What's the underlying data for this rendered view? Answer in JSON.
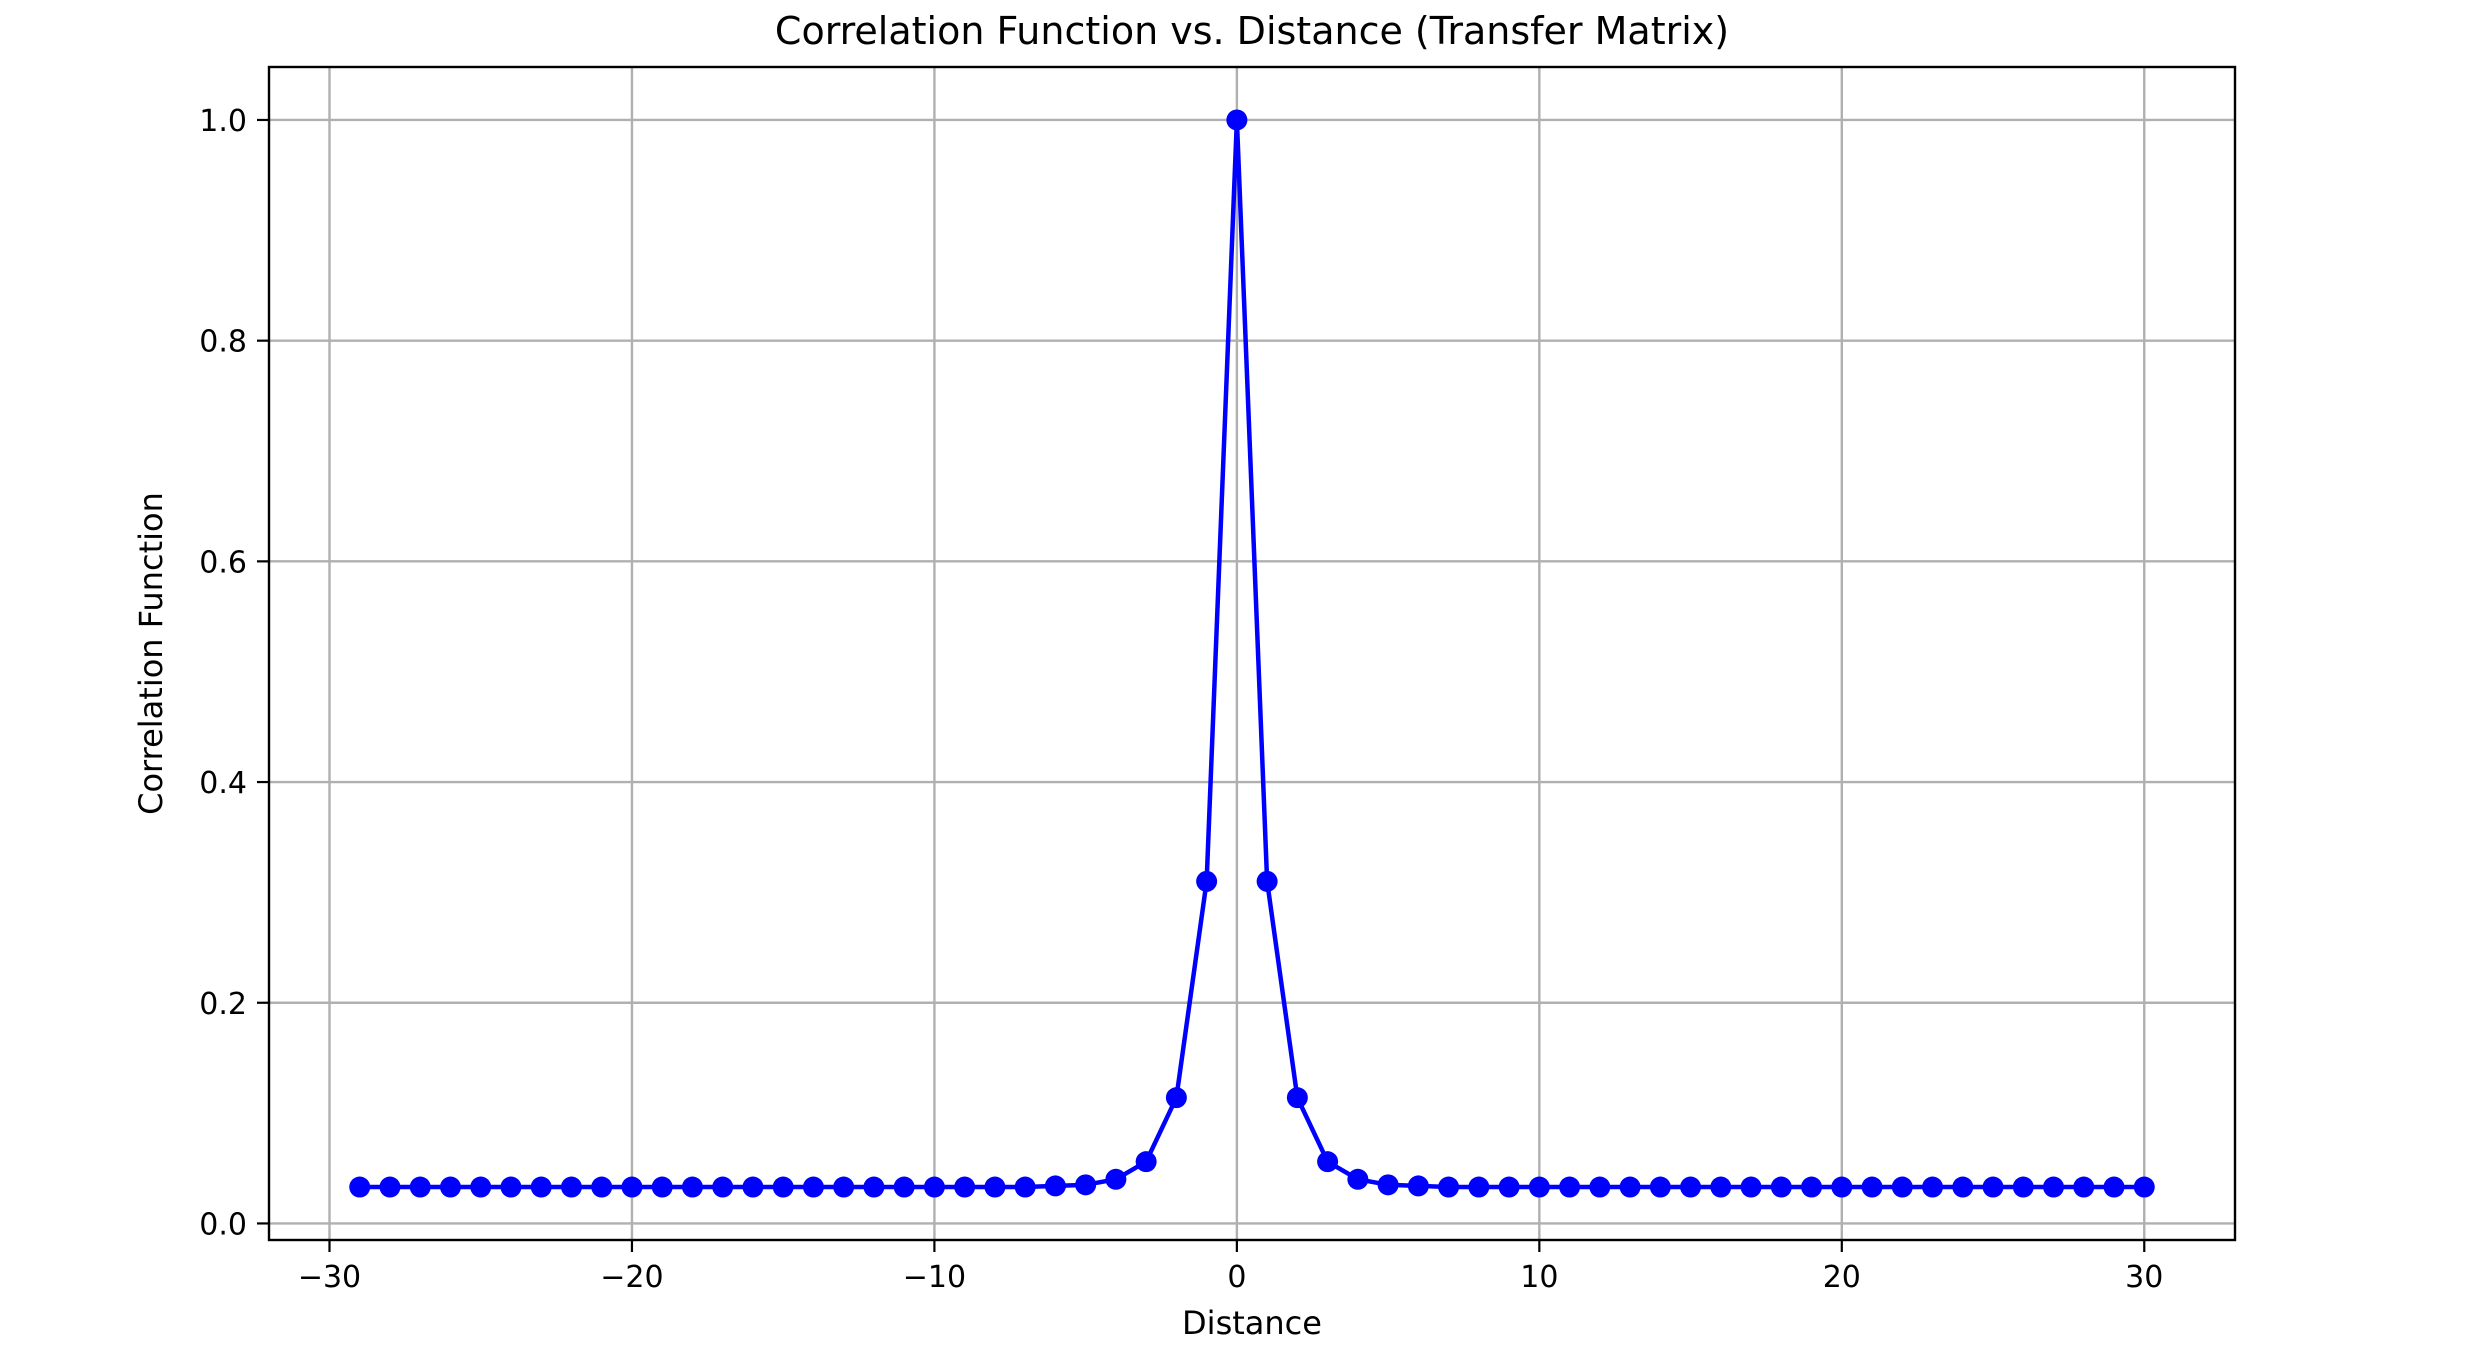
{
  "chart_data": {
    "type": "line",
    "title": "Correlation Function vs. Distance (Transfer Matrix)",
    "xlabel": "Distance",
    "ylabel": "Correlation Function",
    "xlim": [
      -32,
      33
    ],
    "ylim": [
      -0.015,
      1.048
    ],
    "xticks": [
      -30,
      -20,
      -10,
      0,
      10,
      20,
      30
    ],
    "xtick_labels": [
      "−30",
      "−20",
      "−10",
      "0",
      "10",
      "20",
      "30"
    ],
    "yticks": [
      0.0,
      0.2,
      0.4,
      0.6,
      0.8,
      1.0
    ],
    "ytick_labels": [
      "0.0",
      "0.2",
      "0.4",
      "0.6",
      "0.8",
      "1.0"
    ],
    "grid": true,
    "colors": {
      "series": "#0000ff",
      "grid": "#b0b0b0",
      "axes": "#000000"
    },
    "series": [
      {
        "marker": "circle",
        "x": [
          -29,
          -28,
          -27,
          -26,
          -25,
          -24,
          -23,
          -22,
          -21,
          -20,
          -19,
          -18,
          -17,
          -16,
          -15,
          -14,
          -13,
          -12,
          -11,
          -10,
          -9,
          -8,
          -7,
          -6,
          -5,
          -4,
          -3,
          -2,
          -1,
          0,
          1,
          2,
          3,
          4,
          5,
          6,
          7,
          8,
          9,
          10,
          11,
          12,
          13,
          14,
          15,
          16,
          17,
          18,
          19,
          20,
          21,
          22,
          23,
          24,
          25,
          26,
          27,
          28,
          29,
          30
        ],
        "y": [
          0.033,
          0.033,
          0.033,
          0.033,
          0.033,
          0.033,
          0.033,
          0.033,
          0.033,
          0.033,
          0.033,
          0.033,
          0.033,
          0.033,
          0.033,
          0.033,
          0.033,
          0.033,
          0.033,
          0.033,
          0.033,
          0.033,
          0.033,
          0.034,
          0.035,
          0.04,
          0.056,
          0.114,
          0.31,
          1.0,
          0.31,
          0.114,
          0.056,
          0.04,
          0.035,
          0.034,
          0.033,
          0.033,
          0.033,
          0.033,
          0.033,
          0.033,
          0.033,
          0.033,
          0.033,
          0.033,
          0.033,
          0.033,
          0.033,
          0.033,
          0.033,
          0.033,
          0.033,
          0.033,
          0.033,
          0.033,
          0.033,
          0.033,
          0.033,
          0.033
        ]
      }
    ]
  }
}
